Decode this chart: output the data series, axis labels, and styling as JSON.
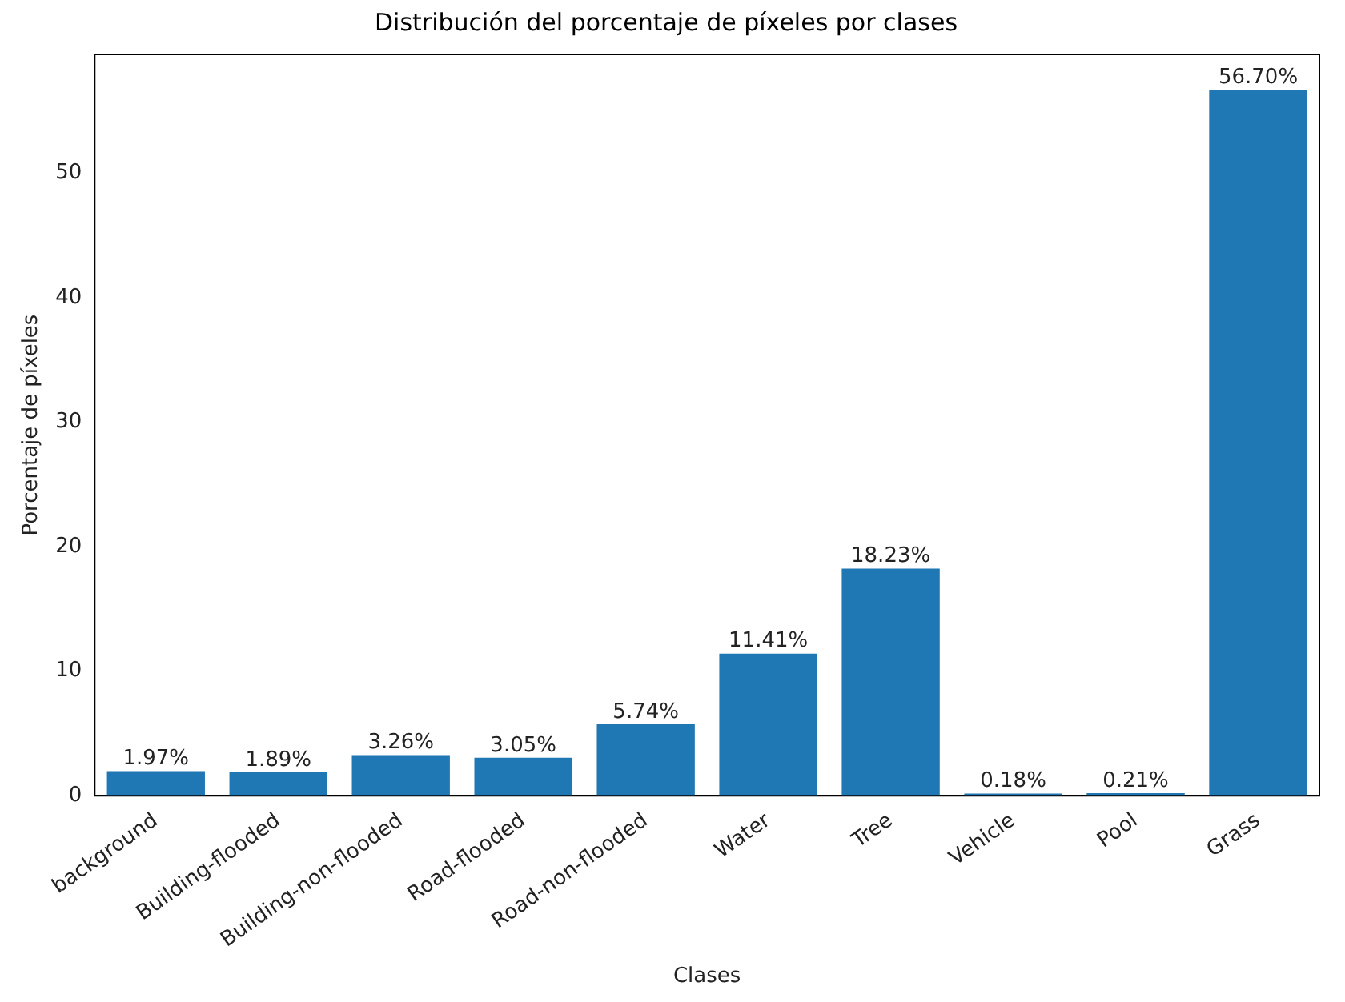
{
  "chart_data": {
    "type": "bar",
    "title": "Distribución del porcentaje de píxeles por clases",
    "xlabel": "Clases",
    "ylabel": "Porcentaje de píxeles",
    "categories": [
      "background",
      "Building-flooded",
      "Building-non-flooded",
      "Road-flooded",
      "Road-non-flooded",
      "Water",
      "Tree",
      "Vehicle",
      "Pool",
      "Grass"
    ],
    "values": [
      1.97,
      1.89,
      3.26,
      3.05,
      5.74,
      11.41,
      18.23,
      0.18,
      0.21,
      56.7
    ],
    "value_labels": [
      "1.97%",
      "1.89%",
      "3.26%",
      "3.05%",
      "5.74%",
      "11.41%",
      "18.23%",
      "0.18%",
      "0.21%",
      "56.70%"
    ],
    "color": "#1f77b4",
    "ylim": [
      0,
      59.535
    ],
    "yticks": [
      0,
      10,
      20,
      30,
      40,
      50
    ],
    "grid": false,
    "legend": false
  }
}
